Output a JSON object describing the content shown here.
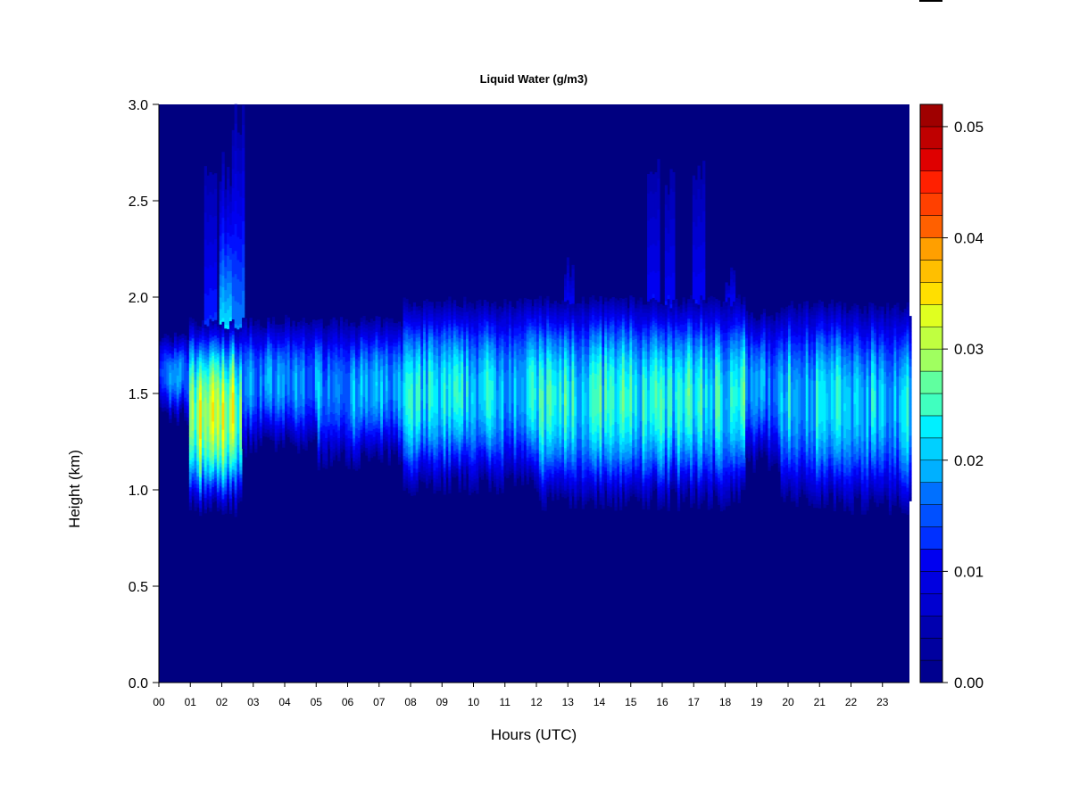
{
  "chart_data": {
    "type": "heatmap",
    "title": "Liquid Water (g/m3)",
    "xlabel": "Hours (UTC)",
    "ylabel": "Height (km)",
    "xlim": [
      0,
      23.9
    ],
    "ylim": [
      0,
      3.0
    ],
    "x_ticks": [
      "00",
      "01",
      "02",
      "03",
      "04",
      "05",
      "06",
      "07",
      "08",
      "09",
      "10",
      "11",
      "12",
      "13",
      "14",
      "15",
      "16",
      "17",
      "18",
      "19",
      "20",
      "21",
      "22",
      "23"
    ],
    "y_ticks": [
      "0.0",
      "0.5",
      "1.0",
      "1.5",
      "2.0",
      "2.5",
      "3.0"
    ],
    "colorbar": {
      "min": 0.0,
      "max": 0.052,
      "levels": 26,
      "tick_labels": [
        "0.00",
        "0.01",
        "0.02",
        "0.03",
        "0.04",
        "0.05"
      ],
      "tick_values": [
        0.0,
        0.01,
        0.02,
        0.03,
        0.04,
        0.05
      ],
      "colors": [
        "#000080",
        "#00008f",
        "#00009f",
        "#0000af",
        "#0000bf",
        "#0000d0",
        "#0000e0",
        "#0000f0",
        "#0010ff",
        "#0030ff",
        "#0050ff",
        "#0070ff",
        "#0090ff",
        "#00b0ff",
        "#00d0ff",
        "#00f0ff",
        "#20ffdf",
        "#40ffbf",
        "#60ff9f",
        "#80ff80",
        "#a0ff60",
        "#c0ff40",
        "#e0ff20",
        "#ffff00",
        "#ffdf00",
        "#ffbf00",
        "#ff9f00",
        "#ff8000",
        "#ff6000",
        "#ff4000",
        "#ff2000",
        "#ff0000",
        "#df0000",
        "#bf0000",
        "#9f0000",
        "#800000"
      ]
    },
    "cloud_layer_segments": [
      {
        "start": 0.0,
        "end": 0.9,
        "base_km": 1.38,
        "top_km": 1.78,
        "peak": 0.015
      },
      {
        "start": 0.9,
        "end": 2.6,
        "base_km": 0.92,
        "top_km": 1.85,
        "peak": 0.03
      },
      {
        "start": 2.6,
        "end": 5.0,
        "base_km": 1.23,
        "top_km": 1.86,
        "peak": 0.016
      },
      {
        "start": 5.0,
        "end": 7.7,
        "base_km": 1.16,
        "top_km": 1.86,
        "peak": 0.017
      },
      {
        "start": 7.7,
        "end": 12.0,
        "base_km": 1.03,
        "top_km": 1.96,
        "peak": 0.02
      },
      {
        "start": 12.0,
        "end": 18.6,
        "base_km": 0.95,
        "top_km": 1.97,
        "peak": 0.022
      },
      {
        "start": 18.6,
        "end": 19.7,
        "base_km": 1.15,
        "top_km": 1.9,
        "peak": 0.016
      },
      {
        "start": 19.7,
        "end": 21.8,
        "base_km": 0.95,
        "top_km": 1.95,
        "peak": 0.02
      },
      {
        "start": 21.8,
        "end": 23.9,
        "base_km": 0.93,
        "top_km": 1.93,
        "peak": 0.02
      }
    ],
    "tall_features": [
      {
        "x": 1.6,
        "top_km": 2.72,
        "peak": 0.015
      },
      {
        "x": 2.1,
        "top_km": 2.75,
        "peak": 0.03
      },
      {
        "x": 2.5,
        "top_km": 3.0,
        "peak": 0.022
      },
      {
        "x": 13.0,
        "top_km": 2.22,
        "peak": 0.012
      },
      {
        "x": 15.7,
        "top_km": 2.72,
        "peak": 0.012
      },
      {
        "x": 16.2,
        "top_km": 2.7,
        "peak": 0.012
      },
      {
        "x": 17.1,
        "top_km": 2.7,
        "peak": 0.012
      },
      {
        "x": 18.1,
        "top_km": 2.2,
        "peak": 0.012
      }
    ]
  }
}
